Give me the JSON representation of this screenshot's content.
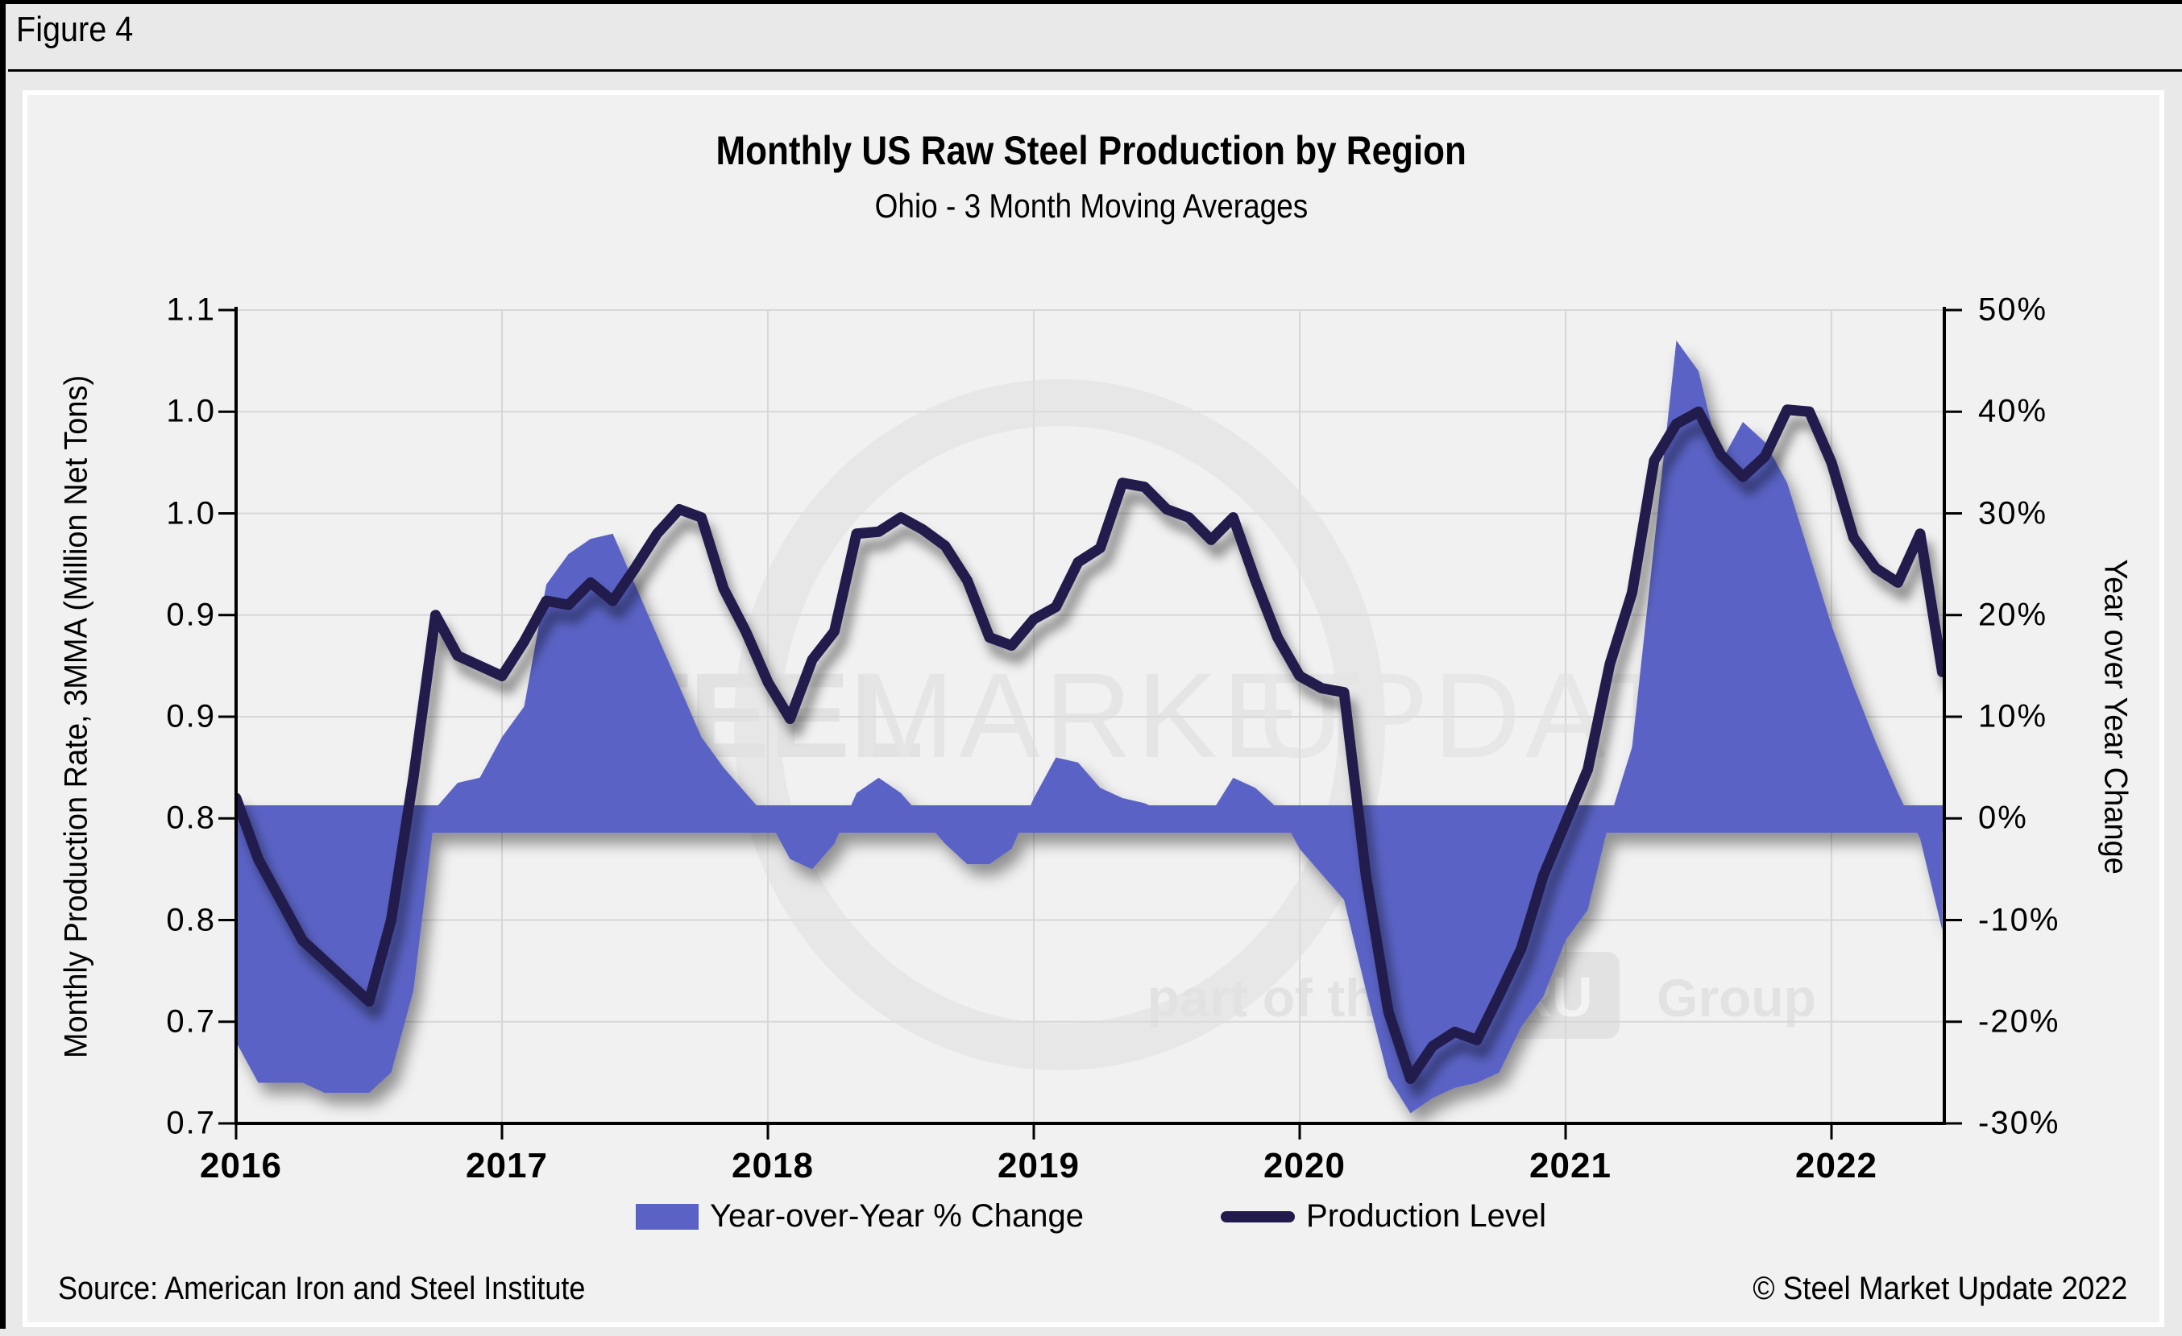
{
  "figure_label": "Figure 4",
  "title": "Monthly US Raw Steel Production by Region",
  "subtitle": "Ohio - 3 Month Moving Averages",
  "footer": {
    "source": "Source: American Iron and Steel Institute",
    "copyright": "© Steel Market Update 2022"
  },
  "watermark": {
    "word1": "STEEL",
    "word2": "MARKET",
    "word3": "UPDATE",
    "tagline_prefix": "part of the",
    "badge": "CRU",
    "tagline_suffix": "Group"
  },
  "colors": {
    "area_fill": "#5a63c5",
    "line_stroke": "#211a4d",
    "grid": "#d7d7d7",
    "axis": "#000000",
    "panel_bg": "#f1f1f1",
    "page_bg": "#e9e9e9",
    "watermark_gray": "#d9d9d9"
  },
  "legend": {
    "items": [
      {
        "label": "Year-over-Year % Change",
        "swatch": "area"
      },
      {
        "label": "Production Level",
        "swatch": "line"
      }
    ]
  },
  "axes": {
    "left": {
      "title": "Monthly Production Rate, 3MMA (Million Net Tons)",
      "ticks": [
        "1.1",
        "1.0",
        "1.0",
        "0.9",
        "0.9",
        "0.8",
        "0.8",
        "0.7",
        "0.7"
      ]
    },
    "right": {
      "title": "Year over Year Change",
      "ticks": [
        "50%",
        "40%",
        "30%",
        "20%",
        "10%",
        "0%",
        "-10%",
        "-20%",
        "-30%"
      ]
    },
    "x": {
      "ticks": [
        "2016",
        "2017",
        "2018",
        "2019",
        "2020",
        "2021",
        "2022"
      ]
    }
  },
  "chart_data": {
    "type": "area-line combo",
    "title": "Monthly US Raw Steel Production by Region",
    "subtitle": "Ohio - 3 Month Moving Averages",
    "frequency": "monthly",
    "x_start": "2016-01",
    "x_end": "2022-06",
    "grid": true,
    "legend_position": "bottom",
    "left_axis": {
      "label": "Monthly Production Rate, 3MMA (Million Net Tons)",
      "range": [
        0.7,
        1.1
      ],
      "tick_step": 0.05
    },
    "right_axis": {
      "label": "Year over Year Change",
      "range": [
        -30,
        50
      ],
      "tick_step": 10,
      "unit": "%"
    },
    "series": [
      {
        "name": "Year-over-Year % Change",
        "type": "area",
        "axis": "right",
        "unit": "%",
        "values": [
          -22,
          -26,
          -26,
          -26,
          -27,
          -27,
          -27,
          -25,
          -17,
          1,
          3.5,
          4,
          8,
          11,
          23,
          26,
          27.5,
          28,
          23,
          18,
          13,
          8,
          5,
          2.5,
          0,
          -4,
          -5,
          -2.5,
          2.5,
          4,
          2.5,
          0,
          -2.5,
          -4.5,
          -4.5,
          -3,
          2,
          6,
          5.5,
          3,
          2,
          1.5,
          0.5,
          1,
          0.5,
          4,
          3,
          1,
          -3,
          -5.5,
          -8,
          -17,
          -25.5,
          -29,
          -27.5,
          -26.5,
          -26,
          -25,
          -20.5,
          -17.5,
          -12,
          -9,
          0,
          7,
          27,
          47,
          44,
          35,
          39,
          37,
          33,
          26,
          19,
          13,
          7.5,
          2.5,
          -2,
          -11
        ]
      },
      {
        "name": "Production Level",
        "type": "line",
        "axis": "left",
        "unit": "Million Net Tons",
        "values": [
          0.86,
          0.83,
          0.81,
          0.79,
          0.78,
          0.77,
          0.76,
          0.8,
          0.87,
          0.95,
          0.93,
          0.925,
          0.92,
          0.937,
          0.957,
          0.955,
          0.966,
          0.957,
          0.973,
          0.99,
          1.002,
          0.998,
          0.963,
          0.942,
          0.917,
          0.899,
          0.928,
          0.942,
          0.99,
          0.991,
          0.998,
          0.992,
          0.984,
          0.967,
          0.939,
          0.935,
          0.948,
          0.954,
          0.976,
          0.983,
          1.015,
          1.013,
          1.002,
          0.998,
          0.987,
          0.998,
          0.967,
          0.939,
          0.92,
          0.914,
          0.912,
          0.821,
          0.755,
          0.722,
          0.738,
          0.745,
          0.741,
          0.763,
          0.786,
          0.822,
          0.848,
          0.874,
          0.926,
          0.961,
          1.026,
          1.044,
          1.05,
          1.029,
          1.018,
          1.028,
          1.051,
          1.05,
          1.025,
          0.988,
          0.973,
          0.966,
          0.99,
          0.922
        ]
      }
    ]
  }
}
